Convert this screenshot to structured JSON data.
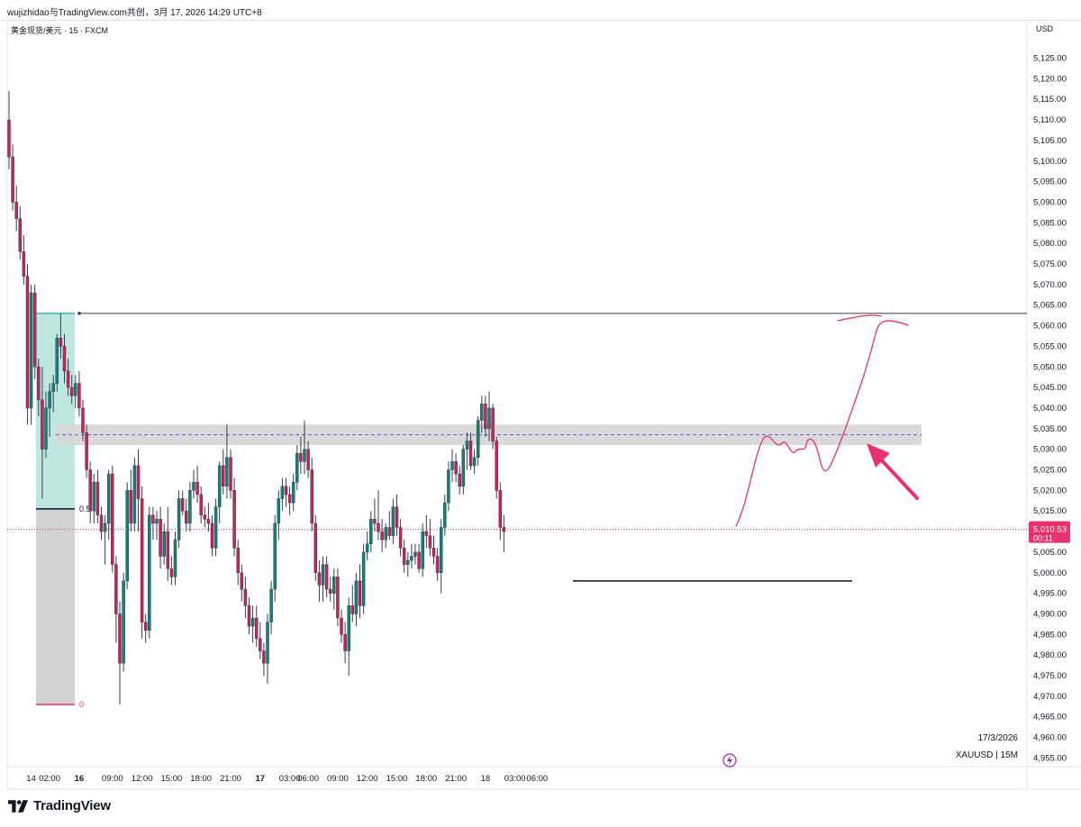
{
  "header": {
    "share_text": "wujizhidao与TradingView.com共创，3月 17, 2026 14:29 UTC+8"
  },
  "symbol_label": "黄金现货/美元 · 15 · FXCM",
  "currency_label": "USD",
  "brand": {
    "name": "TradingView",
    "logo_icon": "tradingview-logo-icon"
  },
  "chart_data": {
    "type": "candlestick",
    "symbol": "XAUUSD",
    "timeframe": "15M",
    "ylim": [
      4952.5,
      5132
    ],
    "y_ticks": [
      5125,
      5120,
      5115,
      5110,
      5105,
      5100,
      5095,
      5090,
      5085,
      5080,
      5075,
      5070,
      5065,
      5060,
      5055,
      5050,
      5045,
      5040,
      5035,
      5030,
      5025,
      5020,
      5015,
      5005,
      5000,
      4995,
      4990,
      4985,
      4980,
      4975,
      4970,
      4965,
      4960,
      4955
    ],
    "y_tick_labels": [
      "5,125.00",
      "5,120.00",
      "5,115.00",
      "5,110.00",
      "5,105.00",
      "5,100.00",
      "5,095.00",
      "5,090.00",
      "5,085.00",
      "5,080.00",
      "5,075.00",
      "5,070.00",
      "5,065.00",
      "5,060.00",
      "5,055.00",
      "5,050.00",
      "5,045.00",
      "5,040.00",
      "5,035.00",
      "5,030.00",
      "5,025.00",
      "5,020.00",
      "5,015.00",
      "5,005.00",
      "5,000.00",
      "4,995.00",
      "4,990.00",
      "4,985.00",
      "4,980.00",
      "4,975.00",
      "4,970.00",
      "4,965.00",
      "4,960.00",
      "4,955.00"
    ],
    "x_ticks": [
      {
        "label": "14",
        "bar": 6,
        "bold": false
      },
      {
        "label": "02:00",
        "bar": 11,
        "bold": false
      },
      {
        "label": "16",
        "bar": 19,
        "bold": true
      },
      {
        "label": "09:00",
        "bar": 28,
        "bold": false
      },
      {
        "label": "12:00",
        "bar": 36,
        "bold": false
      },
      {
        "label": "15:00",
        "bar": 44,
        "bold": false
      },
      {
        "label": "18:00",
        "bar": 52,
        "bold": false
      },
      {
        "label": "21:00",
        "bar": 60,
        "bold": false
      },
      {
        "label": "17",
        "bar": 68,
        "bold": true
      },
      {
        "label": "03:00",
        "bar": 76,
        "bold": false
      },
      {
        "label": "06:00",
        "bar": 81,
        "bold": false
      },
      {
        "label": "09:00",
        "bar": 89,
        "bold": false
      },
      {
        "label": "12:00",
        "bar": 97,
        "bold": false
      },
      {
        "label": "15:00",
        "bar": 105,
        "bold": false
      },
      {
        "label": "18:00",
        "bar": 113,
        "bold": false
      },
      {
        "label": "21:00",
        "bar": 121,
        "bold": false
      },
      {
        "label": "18",
        "bar": 129,
        "bold": false
      },
      {
        "label": "03:00",
        "bar": 137,
        "bold": false
      },
      {
        "label": "06:00",
        "bar": 143,
        "bold": false
      }
    ],
    "candles": [
      [
        5110,
        5117,
        5098,
        5101
      ],
      [
        5101,
        5104,
        5088,
        5090
      ],
      [
        5090,
        5094,
        5083,
        5086
      ],
      [
        5086,
        5089,
        5076,
        5078
      ],
      [
        5078,
        5082,
        5070,
        5072
      ],
      [
        5072,
        5075,
        5036,
        5040
      ],
      [
        5040,
        5070,
        5036,
        5068
      ],
      [
        5068,
        5070,
        5047,
        5050
      ],
      [
        5050,
        5052,
        5038,
        5042
      ],
      [
        5042,
        5050,
        5018,
        5030
      ],
      [
        5030,
        5044,
        5028,
        5040
      ],
      [
        5040,
        5046,
        5033,
        5044
      ],
      [
        5044,
        5048,
        5039,
        5046
      ],
      [
        5046,
        5058,
        5044,
        5057
      ],
      [
        5057,
        5063,
        5052,
        5055
      ],
      [
        5055,
        5058,
        5046,
        5049
      ],
      [
        5049,
        5052,
        5043,
        5045
      ],
      [
        5045,
        5048,
        5041,
        5043
      ],
      [
        5043,
        5048,
        5040,
        5046
      ],
      [
        5046,
        5049,
        5038,
        5040
      ],
      [
        5040,
        5042,
        5032,
        5034
      ],
      [
        5034,
        5036,
        5023,
        5025
      ],
      [
        5025,
        5027,
        5012,
        5015
      ],
      [
        5015,
        5024,
        5012,
        5022
      ],
      [
        5022,
        5025,
        5012,
        5014
      ],
      [
        5014,
        5016,
        5008,
        5010
      ],
      [
        5010,
        5014,
        5002,
        5012
      ],
      [
        5012,
        5025,
        5008,
        5024
      ],
      [
        5024,
        5026,
        5000,
        5002
      ],
      [
        5002,
        5004,
        4983,
        4990
      ],
      [
        4990,
        4993,
        4968,
        4978
      ],
      [
        4978,
        5000,
        4976,
        4998
      ],
      [
        4998,
        5022,
        4996,
        5020
      ],
      [
        5020,
        5025,
        5010,
        5012
      ],
      [
        5012,
        5028,
        5010,
        5026
      ],
      [
        5026,
        5030,
        5010,
        5018
      ],
      [
        5018,
        5021,
        4984,
        4988
      ],
      [
        4988,
        4990,
        4983,
        4986
      ],
      [
        4986,
        5016,
        4984,
        5014
      ],
      [
        5014,
        5016,
        5008,
        5012
      ],
      [
        5012,
        5015,
        5008,
        5013
      ],
      [
        5013,
        5016,
        5001,
        5004
      ],
      [
        5004,
        5012,
        5002,
        5010
      ],
      [
        5010,
        5016,
        4998,
        5001
      ],
      [
        5001,
        5004,
        4997,
        4999
      ],
      [
        4999,
        5010,
        4997,
        5008
      ],
      [
        5008,
        5020,
        5006,
        5018
      ],
      [
        5018,
        5020,
        5014,
        5015
      ],
      [
        5015,
        5018,
        5010,
        5012
      ],
      [
        5012,
        5022,
        5010,
        5020
      ],
      [
        5020,
        5025,
        5018,
        5022
      ],
      [
        5022,
        5026,
        5017,
        5019
      ],
      [
        5019,
        5021,
        5012,
        5014
      ],
      [
        5014,
        5016,
        5011,
        5013
      ],
      [
        5013,
        5017,
        5010,
        5012
      ],
      [
        5012,
        5014,
        5004,
        5006
      ],
      [
        5006,
        5018,
        5004,
        5016
      ],
      [
        5016,
        5027,
        5012,
        5026
      ],
      [
        5026,
        5030,
        5019,
        5021
      ],
      [
        5021,
        5036,
        5018,
        5028
      ],
      [
        5028,
        5030,
        5018,
        5020
      ],
      [
        5020,
        5023,
        5004,
        5006
      ],
      [
        5006,
        5008,
        4997,
        5000
      ],
      [
        5000,
        5002,
        4993,
        4996
      ],
      [
        4996,
        4999,
        4989,
        4992
      ],
      [
        4992,
        4994,
        4985,
        4987
      ],
      [
        4987,
        4992,
        4983,
        4989
      ],
      [
        4989,
        4992,
        4982,
        4984
      ],
      [
        4984,
        4988,
        4979,
        4981
      ],
      [
        4981,
        4983,
        4975,
        4978
      ],
      [
        4978,
        4990,
        4973,
        4988
      ],
      [
        4988,
        4998,
        4985,
        4996
      ],
      [
        4996,
        5014,
        4993,
        5012
      ],
      [
        5012,
        5020,
        5008,
        5018
      ],
      [
        5018,
        5023,
        5015,
        5021
      ],
      [
        5021,
        5023,
        5016,
        5019
      ],
      [
        5019,
        5021,
        5014,
        5017
      ],
      [
        5017,
        5024,
        5015,
        5022
      ],
      [
        5022,
        5031,
        5020,
        5029
      ],
      [
        5029,
        5033,
        5024,
        5027
      ],
      [
        5027,
        5037,
        5024,
        5030
      ],
      [
        5030,
        5032,
        5023,
        5025
      ],
      [
        5025,
        5028,
        5010,
        5012
      ],
      [
        5012,
        5014,
        4998,
        5000
      ],
      [
        5000,
        5003,
        4993,
        4997
      ],
      [
        4997,
        5004,
        4993,
        5002
      ],
      [
        5002,
        5004,
        4994,
        4996
      ],
      [
        4996,
        4999,
        4993,
        4995
      ],
      [
        4995,
        5001,
        4991,
        4999
      ],
      [
        4999,
        5001,
        4987,
        4989
      ],
      [
        4989,
        4991,
        4983,
        4985
      ],
      [
        4985,
        4988,
        4978,
        4981
      ],
      [
        4981,
        4994,
        4975,
        4992
      ],
      [
        4992,
        4997,
        4988,
        4990
      ],
      [
        4990,
        5000,
        4987,
        4998
      ],
      [
        4998,
        5002,
        4989,
        4992
      ],
      [
        4992,
        5007,
        4990,
        5005
      ],
      [
        5005,
        5010,
        5003,
        5007
      ],
      [
        5007,
        5015,
        5005,
        5013
      ],
      [
        5013,
        5018,
        5010,
        5012
      ],
      [
        5012,
        5020,
        5008,
        5010
      ],
      [
        5010,
        5013,
        5005,
        5008
      ],
      [
        5008,
        5012,
        5006,
        5011
      ],
      [
        5011,
        5015,
        5008,
        5009
      ],
      [
        5009,
        5018,
        5007,
        5016
      ],
      [
        5016,
        5019,
        5009,
        5011
      ],
      [
        5011,
        5013,
        5004,
        5006
      ],
      [
        5006,
        5008,
        5000,
        5002
      ],
      [
        5002,
        5005,
        4999,
        5003
      ],
      [
        5003,
        5007,
        5001,
        5004
      ],
      [
        5004,
        5007,
        5002,
        5005
      ],
      [
        5005,
        5007,
        5000,
        5001
      ],
      [
        5001,
        5012,
        4999,
        5010
      ],
      [
        5010,
        5014,
        5006,
        5009
      ],
      [
        5009,
        5013,
        5004,
        5006
      ],
      [
        5006,
        5009,
        5002,
        5004
      ],
      [
        5004,
        5006,
        4998,
        5000
      ],
      [
        5000,
        5013,
        4995,
        5011
      ],
      [
        5011,
        5019,
        5009,
        5017
      ],
      [
        5017,
        5027,
        5015,
        5025
      ],
      [
        5025,
        5030,
        5022,
        5027
      ],
      [
        5027,
        5029,
        5022,
        5024
      ],
      [
        5024,
        5026,
        5019,
        5021
      ],
      [
        5021,
        5031,
        5019,
        5030
      ],
      [
        5030,
        5034,
        5025,
        5032
      ],
      [
        5032,
        5034,
        5025,
        5026
      ],
      [
        5026,
        5030,
        5024,
        5028
      ],
      [
        5028,
        5038,
        5026,
        5037
      ],
      [
        5037,
        5043,
        5034,
        5041
      ],
      [
        5041,
        5043,
        5033,
        5035
      ],
      [
        5035,
        5044,
        5032,
        5040
      ],
      [
        5040,
        5041,
        5030,
        5032
      ],
      [
        5032,
        5033,
        5018,
        5020
      ],
      [
        5020,
        5022,
        5008,
        5011
      ],
      [
        5011,
        5014,
        5005,
        5010
      ]
    ],
    "fib": {
      "top_price": 5063,
      "mid_price": 5015.5,
      "bottom_price": 4968,
      "labels": [
        "0.5",
        "0"
      ]
    },
    "resistance_price": 5063,
    "zone": {
      "top": 5036,
      "bottom": 5031,
      "mid": 5033.5
    },
    "support_price": 4998,
    "last_price": "5,010.53",
    "last_price_value": 5010.53,
    "countdown": "00:11",
    "date_label": "17/3/2026",
    "symbol_label": "XAUUSD | 15M",
    "colors": {
      "up": "#13807a",
      "down": "#ce1f5b",
      "wick": "#3a3e4a",
      "annotation": "#e8326b",
      "zone": "#d6d6d6",
      "fib_fill_top": "#b3e3db",
      "fib_fill_bottom": "#cfcfcf"
    }
  }
}
